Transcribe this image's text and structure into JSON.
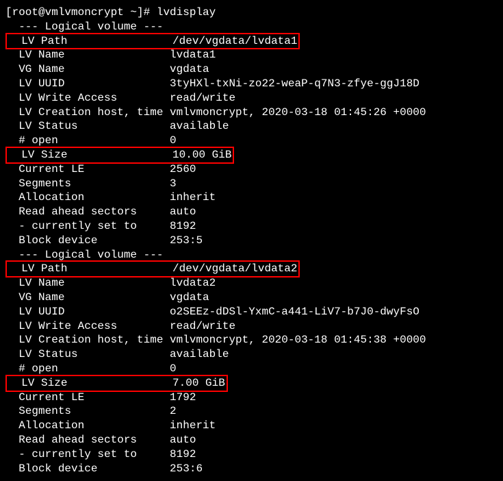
{
  "prompt": "[root@vmlvmoncrypt ~]# ",
  "command": "lvdisplay",
  "section_header": "  --- Logical volume ---",
  "vol1": {
    "lv_path_label": "  LV Path               ",
    "lv_path_value": " /dev/vgdata/lvdata1",
    "lv_name": "  LV Name                lvdata1",
    "vg_name": "  VG Name                vgdata",
    "lv_uuid": "  LV UUID                3tyHXl-txNi-zo22-weaP-q7N3-zfye-ggJ18D",
    "lv_write_access": "  LV Write Access        read/write",
    "lv_creation": "  LV Creation host, time vmlvmoncrypt, 2020-03-18 01:45:26 +0000",
    "lv_status": "  LV Status              available",
    "open": "  # open                 0",
    "lv_size_label": "  LV Size               ",
    "lv_size_value": " 10.00 GiB",
    "current_le": "  Current LE             2560",
    "segments": "  Segments               3",
    "allocation": "  Allocation             inherit",
    "read_ahead": "  Read ahead sectors     auto",
    "currently_set": "  - currently set to     8192",
    "block_device": "  Block device           253:5"
  },
  "vol2": {
    "lv_path_label": "  LV Path               ",
    "lv_path_value": " /dev/vgdata/lvdata2",
    "lv_name": "  LV Name                lvdata2",
    "vg_name": "  VG Name                vgdata",
    "lv_uuid": "  LV UUID                o2SEEz-dDSl-YxmC-a441-LiV7-b7J0-dwyFsO",
    "lv_write_access": "  LV Write Access        read/write",
    "lv_creation": "  LV Creation host, time vmlvmoncrypt, 2020-03-18 01:45:38 +0000",
    "lv_status": "  LV Status              available",
    "open": "  # open                 0",
    "lv_size_label": "  LV Size               ",
    "lv_size_value": " 7.00 GiB",
    "current_le": "  Current LE             1792",
    "segments": "  Segments               2",
    "allocation": "  Allocation             inherit",
    "read_ahead": "  Read ahead sectors     auto",
    "currently_set": "  - currently set to     8192",
    "block_device": "  Block device           253:6"
  },
  "blank": ""
}
